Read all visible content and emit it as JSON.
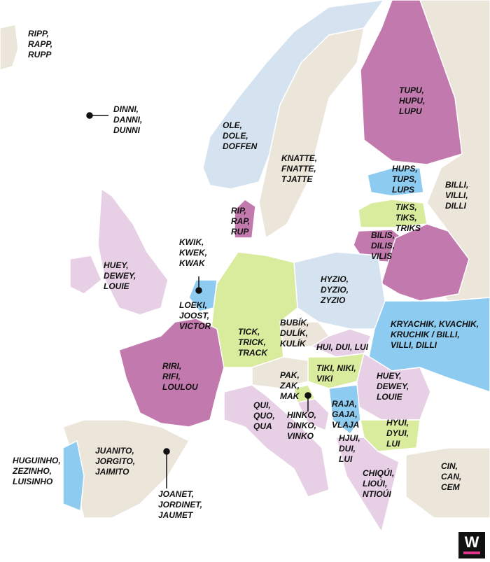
{
  "labels": [
    {
      "lines": [
        "RIPP,",
        "RAPP,",
        "RUPP"
      ]
    },
    {
      "lines": [
        "DINNI,",
        "DANNI,",
        "DUNNI"
      ]
    },
    {
      "lines": [
        "OLE,",
        "DOLE,",
        "DOFFEN"
      ]
    },
    {
      "lines": [
        "KNATTE,",
        "FNATTE,",
        "TJATTE"
      ]
    },
    {
      "lines": [
        "TUPU,",
        "HUPU,",
        "LUPU"
      ]
    },
    {
      "lines": [
        "HUPS,",
        "TUPS,",
        "LUPS"
      ]
    },
    {
      "lines": [
        "BILLI,",
        "VILLI,",
        "DILLI"
      ]
    },
    {
      "lines": [
        "TIKS,",
        "TIKS,",
        "TRIKS"
      ]
    },
    {
      "lines": [
        "BILIS,",
        "DILIS,",
        "VILIS"
      ]
    },
    {
      "lines": [
        "RIP,",
        "RAP,",
        "RUP"
      ]
    },
    {
      "lines": [
        "KWIK,",
        "KWEK,",
        "KWAK"
      ]
    },
    {
      "lines": [
        "HUEY,",
        "DEWEY,",
        "LOUIE"
      ]
    },
    {
      "lines": [
        "LOEKI,",
        "JOOST,",
        "VICTOR"
      ]
    },
    {
      "lines": [
        "HYZIO,",
        "DYZIO,",
        "ZYZIO"
      ]
    },
    {
      "lines": [
        "TICK,",
        "TRICK,",
        "TRACK"
      ]
    },
    {
      "lines": [
        "BUBÍK,",
        "DULÍK,",
        "KULÍK"
      ]
    },
    {
      "lines": [
        "KRYACHIK, KVACHIK,",
        "KRUCHIK / BILLI,",
        "VILLI, DILLI"
      ]
    },
    {
      "lines": [
        "HUI, DUI, LUI"
      ]
    },
    {
      "lines": [
        "RIRI,",
        "RIFI,",
        "LOULOU"
      ]
    },
    {
      "lines": [
        "TIKI, NIKI,",
        "VIKI"
      ]
    },
    {
      "lines": [
        "HUEY,",
        "DEWEY,",
        "LOUIE"
      ]
    },
    {
      "lines": [
        "PAK,",
        "ZAK,",
        "MAK"
      ]
    },
    {
      "lines": [
        "HINKO,",
        "DINKO,",
        "VINKO"
      ]
    },
    {
      "lines": [
        "RAJA,",
        "GAJA,",
        "VLAJA"
      ]
    },
    {
      "lines": [
        "QUI,",
        "QUO,",
        "QUA"
      ]
    },
    {
      "lines": [
        "HYUI,",
        "DYUI,",
        "LUI"
      ]
    },
    {
      "lines": [
        "HJUI,",
        "DUI,",
        "LUI"
      ]
    },
    {
      "lines": [
        "HUGUINHO,",
        "ZEZINHO,",
        "LUISINHO"
      ]
    },
    {
      "lines": [
        "JUANITO,",
        "JORGITO,",
        "JAIMITO"
      ]
    },
    {
      "lines": [
        "JOANET,",
        "JORDINET,",
        "JAUMET"
      ]
    },
    {
      "lines": [
        "CHIQÚI,",
        "LIOÚI,",
        "NTIOÚI"
      ]
    },
    {
      "lines": [
        "CIN,",
        "CAN,",
        "CEM"
      ]
    }
  ],
  "logo": {
    "text": "W"
  }
}
